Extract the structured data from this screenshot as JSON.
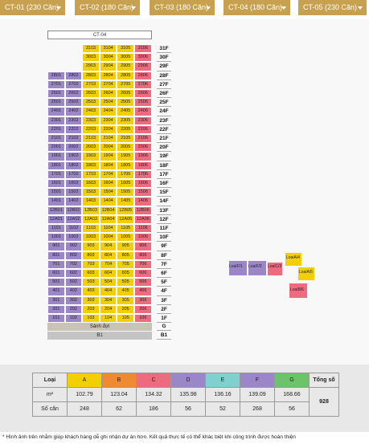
{
  "tabs": [
    {
      "label": "CT-01 (230 Căn)"
    },
    {
      "label": "CT-02 (180 Căn)"
    },
    {
      "label": "CT-03 (180 Căn)"
    },
    {
      "label": "CT-04 (180 Căn)"
    },
    {
      "label": "CT-05 (230 Căn)"
    }
  ],
  "building": {
    "title": "CT-04",
    "colors": {
      "A": "#f2d000",
      "B": "#f08a30",
      "C": "#ee6b7f",
      "D": "#9b86c8",
      "E": "#7fd0cf",
      "F": "#9b86c8",
      "G": "#6cc36a"
    },
    "floors": [
      "31F",
      "30F",
      "29F",
      "28F",
      "27F",
      "26F",
      "25F",
      "24F",
      "23F",
      "22F",
      "21F",
      "20F",
      "19F",
      "18F",
      "17F",
      "16F",
      "15F",
      "14F",
      "13F",
      "12F",
      "11F",
      "10F",
      "9F",
      "8F",
      "7F",
      "6F",
      "5F",
      "4F",
      "3F",
      "2F",
      "1F"
    ],
    "unit_prefixes": [
      "31",
      "30",
      "29",
      "28",
      "27",
      "26",
      "25",
      "24",
      "23",
      "22",
      "21",
      "20",
      "19",
      "18",
      "17",
      "16",
      "15",
      "14",
      "12B",
      "12A",
      "11",
      "10",
      "9",
      "8",
      "7",
      "6",
      "5",
      "4",
      "3",
      "2",
      "1"
    ],
    "ground_label": "Sảnh đợi",
    "ground_floor": "G",
    "basement_label": "B1",
    "basement_floor": "B1"
  },
  "plan_labels": [
    "LoaiF/1",
    "LoaiF/2",
    "LoaiC/3",
    "LoaiA/4",
    "LoaiA/5",
    "LoaiB/6"
  ],
  "legend": {
    "header": "Loại",
    "area_label": "m²",
    "count_label": "Số căn",
    "total_label": "Tổng số",
    "total_value": "928",
    "types": [
      {
        "name": "A",
        "area": "102.79",
        "count": "248",
        "color": "#f2d000"
      },
      {
        "name": "B",
        "area": "123.04",
        "count": "62",
        "color": "#f08a30"
      },
      {
        "name": "C",
        "area": "134.32",
        "count": "186",
        "color": "#ee6b7f"
      },
      {
        "name": "D",
        "area": "135.98",
        "count": "56",
        "color": "#9b86c8"
      },
      {
        "name": "E",
        "area": "136.16",
        "count": "52",
        "color": "#7fd0cf"
      },
      {
        "name": "F",
        "area": "139.09",
        "count": "268",
        "color": "#9b86c8"
      },
      {
        "name": "G",
        "area": "168.66",
        "count": "56",
        "color": "#6cc36a"
      }
    ]
  },
  "footer": "* Hình ảnh trên nhằm giúp khách hàng dễ ghi nhận dự án hơn. Kết quả thực tế có thể khác biệt khi công trình được hoàn thiện"
}
